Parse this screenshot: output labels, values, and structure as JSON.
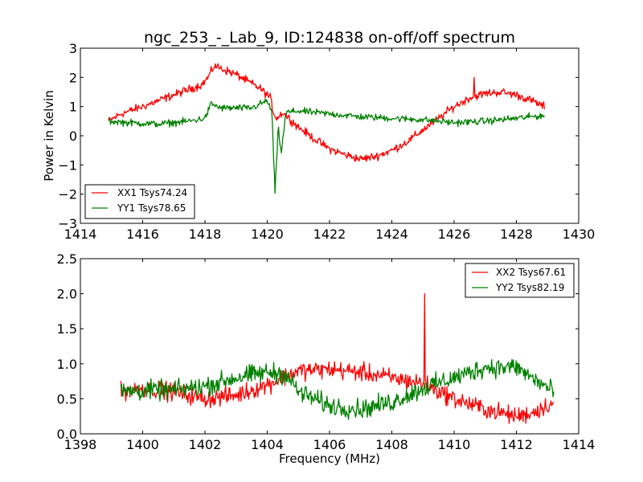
{
  "chart_data": [
    {
      "type": "line",
      "title": "ngc_253_-_Lab_9, ID:124838 on-off/off spectrum",
      "xlabel": "",
      "ylabel": "Power in Kelvin",
      "xlim": [
        1414,
        1430
      ],
      "ylim": [
        -3,
        3
      ],
      "xticks": [
        1414,
        1416,
        1418,
        1420,
        1422,
        1424,
        1426,
        1428,
        1430
      ],
      "xtick_labels": [
        "1414",
        "1416",
        "1418",
        "1420",
        "1422",
        "1424",
        "1426",
        "1428",
        "1430"
      ],
      "yticks": [
        -3,
        -2,
        -1,
        0,
        1,
        2,
        3
      ],
      "ytick_labels": [
        "−3",
        "−2",
        "−1",
        "0",
        "1",
        "2",
        "3"
      ],
      "grid": false,
      "legend_position": "lower-left",
      "series": [
        {
          "name": "XX1 Tsys74.24",
          "color": "#ff0000",
          "noise": 0.12,
          "x": [
            1414.9,
            1415.3,
            1416.0,
            1417.0,
            1417.9,
            1418.1,
            1418.3,
            1419.0,
            1419.8,
            1420.1,
            1420.2,
            1420.3,
            1420.5,
            1421.0,
            1421.5,
            1422.0,
            1422.5,
            1423.0,
            1423.5,
            1424.0,
            1424.5,
            1425.0,
            1425.5,
            1426.0,
            1426.5,
            1427.0,
            1427.5,
            1428.0,
            1428.5,
            1428.9
          ],
          "y": [
            0.5,
            0.75,
            1.0,
            1.4,
            1.75,
            2.0,
            2.4,
            2.1,
            1.6,
            1.3,
            0.8,
            0.6,
            0.8,
            0.3,
            -0.1,
            -0.45,
            -0.65,
            -0.8,
            -0.7,
            -0.5,
            -0.2,
            0.2,
            0.6,
            1.0,
            1.3,
            1.45,
            1.5,
            1.4,
            1.2,
            1.0
          ],
          "spikes": [
            {
              "x": 1426.65,
              "y": 2.0
            }
          ]
        },
        {
          "name": "YY1 Tsys78.65",
          "color": "#008000",
          "noise": 0.1,
          "x": [
            1414.9,
            1415.5,
            1416.5,
            1417.5,
            1418.0,
            1418.2,
            1418.5,
            1419.5,
            1420.0,
            1420.15,
            1420.25,
            1420.35,
            1420.45,
            1420.6,
            1421.0,
            1422.0,
            1423.0,
            1424.0,
            1425.0,
            1426.0,
            1427.0,
            1428.0,
            1428.9
          ],
          "y": [
            0.5,
            0.45,
            0.4,
            0.5,
            0.6,
            1.1,
            0.95,
            0.95,
            1.2,
            0.8,
            -2.0,
            0.3,
            -0.6,
            0.8,
            0.85,
            0.75,
            0.65,
            0.6,
            0.55,
            0.45,
            0.5,
            0.6,
            0.7
          ],
          "spikes": []
        }
      ]
    },
    {
      "type": "line",
      "title": "",
      "xlabel": "Frequency (MHz)",
      "ylabel": "",
      "xlim": [
        1398,
        1414
      ],
      "ylim": [
        0.0,
        2.5
      ],
      "xticks": [
        1398,
        1400,
        1402,
        1404,
        1406,
        1408,
        1410,
        1412,
        1414
      ],
      "xtick_labels": [
        "1398",
        "1400",
        "1402",
        "1404",
        "1406",
        "1408",
        "1410",
        "1412",
        "1414"
      ],
      "yticks": [
        0.0,
        0.5,
        1.0,
        1.5,
        2.0,
        2.5
      ],
      "ytick_labels": [
        "0.0",
        "0.5",
        "1.0",
        "1.5",
        "2.0",
        "2.5"
      ],
      "grid": false,
      "legend_position": "upper-right",
      "series": [
        {
          "name": "XX2 Tsys67.61",
          "color": "#ff0000",
          "noise": 0.11,
          "x": [
            1399.3,
            1400.0,
            1401.0,
            1402.0,
            1403.0,
            1404.0,
            1405.0,
            1406.0,
            1407.0,
            1408.0,
            1409.0,
            1410.0,
            1411.0,
            1412.0,
            1412.5,
            1413.2
          ],
          "y": [
            0.6,
            0.65,
            0.6,
            0.5,
            0.55,
            0.7,
            0.9,
            0.92,
            0.88,
            0.8,
            0.72,
            0.5,
            0.35,
            0.25,
            0.3,
            0.45
          ],
          "spikes": [
            {
              "x": 1409.05,
              "y": 2.0
            }
          ]
        },
        {
          "name": "YY2 Tsys82.19",
          "color": "#008000",
          "noise": 0.12,
          "x": [
            1399.3,
            1400.0,
            1401.0,
            1402.0,
            1403.0,
            1404.0,
            1404.6,
            1405.0,
            1406.0,
            1407.0,
            1408.0,
            1409.0,
            1410.0,
            1411.0,
            1412.0,
            1412.5,
            1413.2
          ],
          "y": [
            0.6,
            0.62,
            0.62,
            0.68,
            0.8,
            0.88,
            0.85,
            0.6,
            0.4,
            0.35,
            0.45,
            0.65,
            0.8,
            0.95,
            0.95,
            0.8,
            0.6
          ],
          "spikes": []
        }
      ]
    }
  ]
}
